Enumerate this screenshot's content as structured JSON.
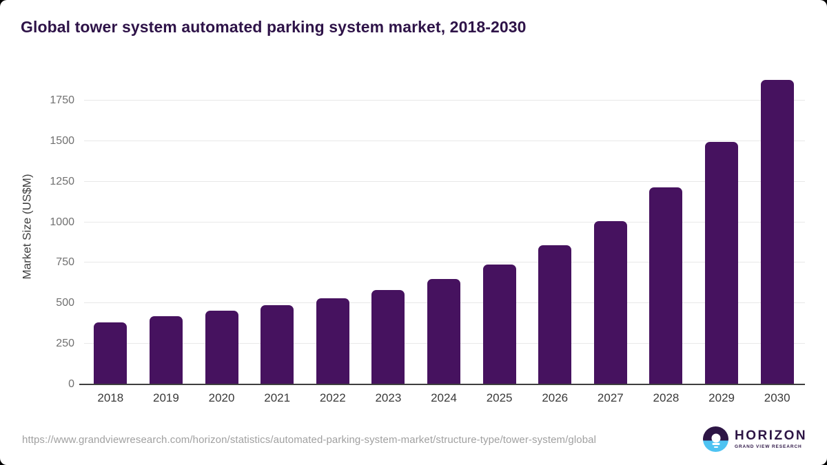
{
  "page": {
    "source_url": "https://www.grandviewresearch.com/horizon/statistics/automated-parking-system-market/structure-type/tower-system/global"
  },
  "logo": {
    "name": "HORIZON",
    "subtitle": "GRAND VIEW RESEARCH",
    "icon": "horizon-sun-over-water-icon",
    "purple": "#2d1545",
    "blue": "#4ec3f2"
  },
  "chart_data": {
    "type": "bar",
    "title": "Global tower system automated parking system market, 2018-2030",
    "categories": [
      "2018",
      "2019",
      "2020",
      "2021",
      "2022",
      "2023",
      "2024",
      "2025",
      "2026",
      "2027",
      "2028",
      "2029",
      "2030"
    ],
    "values": [
      383,
      421,
      453,
      488,
      529,
      580,
      651,
      738,
      857,
      1008,
      1214,
      1493,
      1878
    ],
    "xlabel": "",
    "ylabel": "Market Size (US$M)",
    "ylim": [
      0,
      1945
    ],
    "yticks": [
      0,
      250,
      500,
      750,
      1000,
      1250,
      1500,
      1750
    ],
    "grid": "horizontal",
    "legend": "none",
    "bar_color": "#46125f",
    "title_color": "#2e1348",
    "gridline_color": "#e8e8e8",
    "axis_color": "#3e3e3e"
  }
}
